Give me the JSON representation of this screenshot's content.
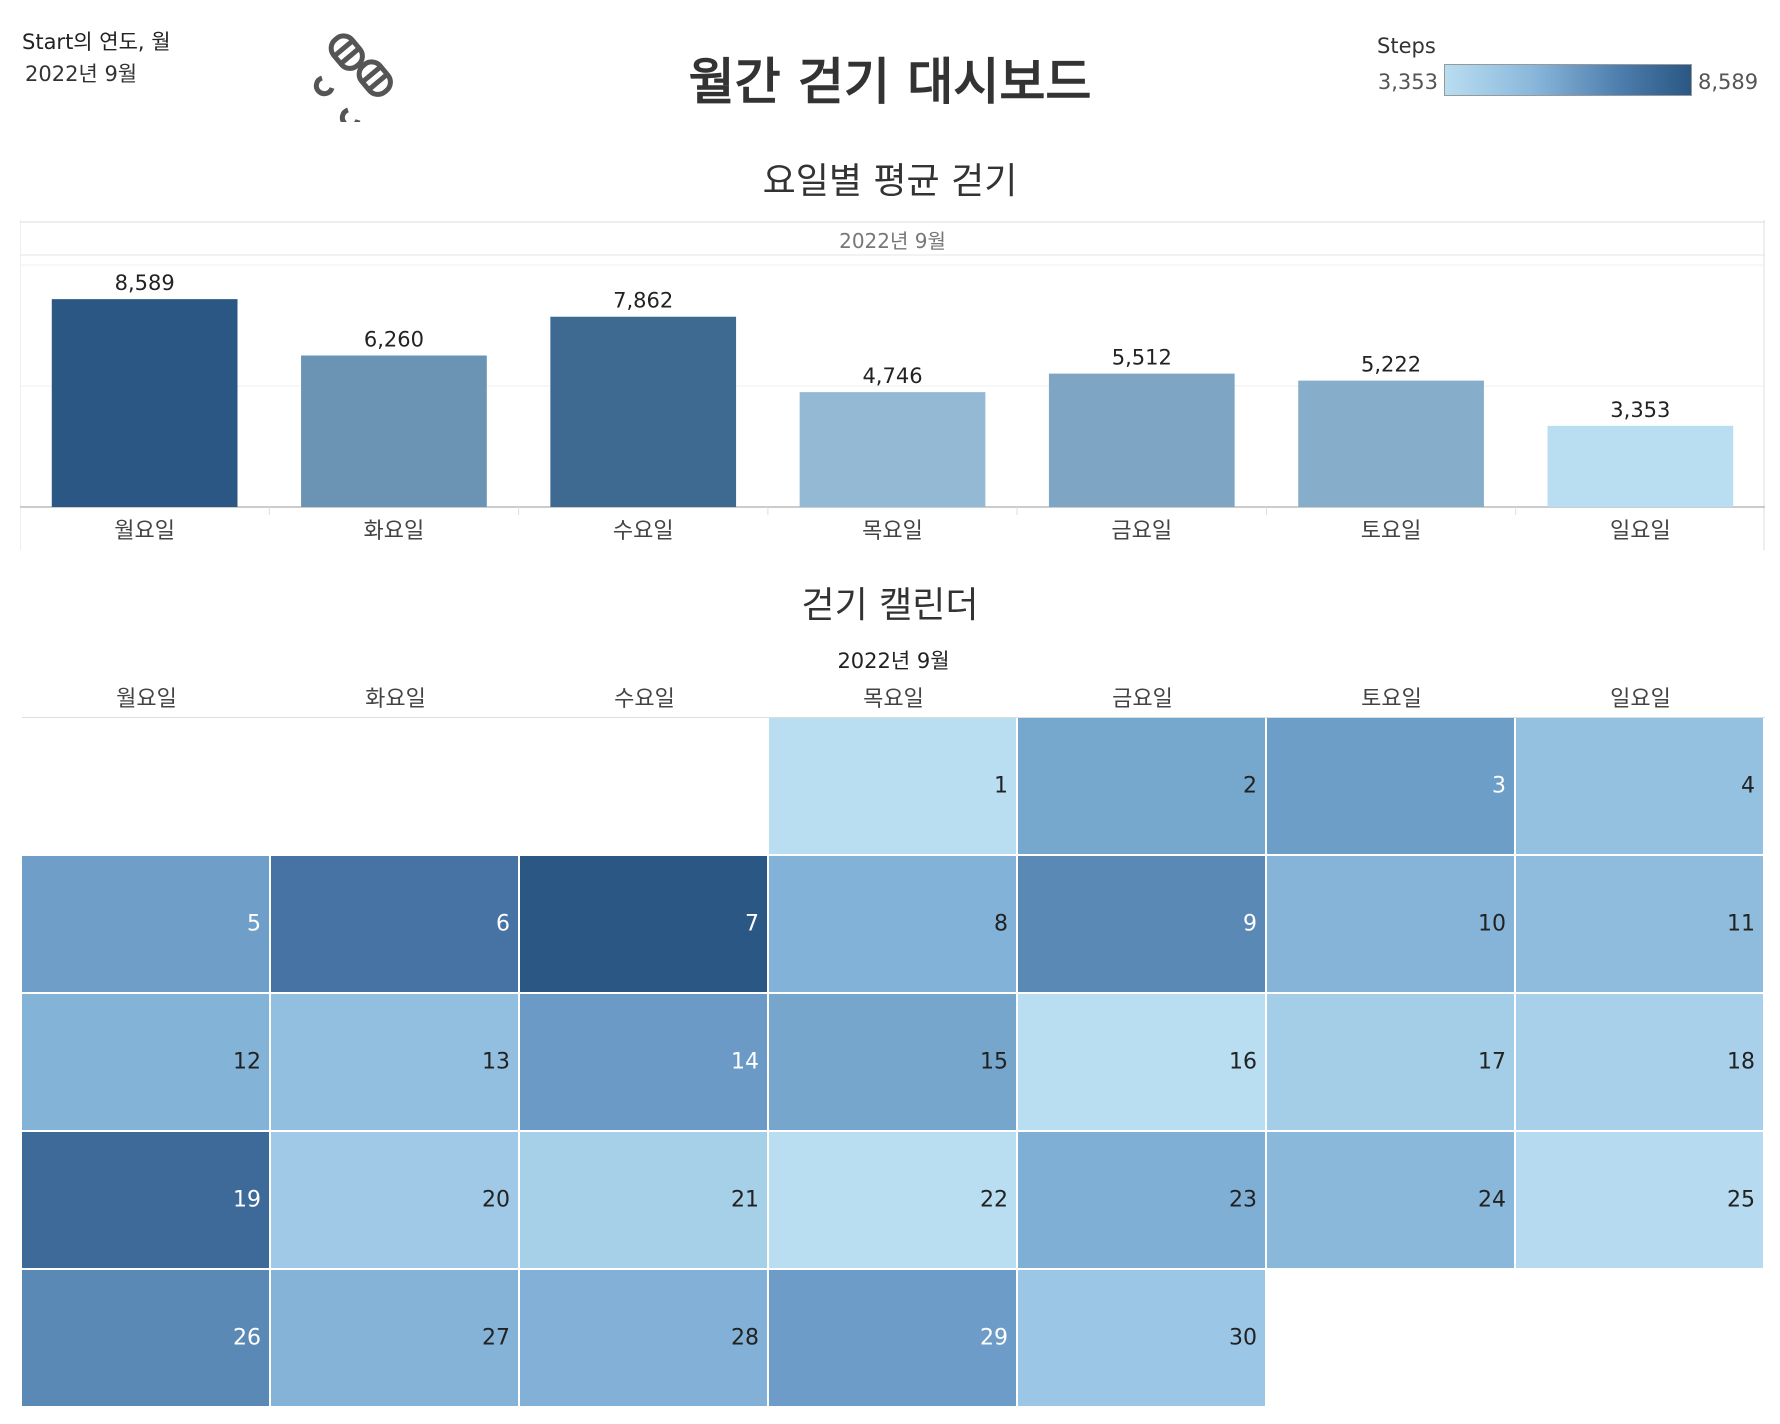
{
  "filter": {
    "label": "Start의 연도, 월",
    "value": "2022년 9월"
  },
  "title": "월간 걷기 대시보드",
  "legend": {
    "title": "Steps",
    "min": "3,353",
    "max": "8,589",
    "min_value": 3353,
    "max_value": 8589,
    "colors": [
      "#b9ddf1",
      "#2a5783"
    ]
  },
  "bar_section": {
    "title": "요일별 평균 걷기",
    "month_label": "2022년 9월"
  },
  "calendar_section": {
    "title": "걷기 캘린더",
    "month_label": "2022년 9월",
    "weekdays": [
      "월요일",
      "화요일",
      "수요일",
      "목요일",
      "금요일",
      "토요일",
      "일요일"
    ]
  },
  "chart_data": [
    {
      "type": "bar",
      "title": "요일별 평균 걷기",
      "subtitle": "2022년 9월",
      "categories": [
        "월요일",
        "화요일",
        "수요일",
        "목요일",
        "금요일",
        "토요일",
        "일요일"
      ],
      "values": [
        8589,
        6260,
        7862,
        4746,
        5512,
        5222,
        3353
      ],
      "value_labels": [
        "8,589",
        "6,260",
        "7,862",
        "4,746",
        "5,512",
        "5,222",
        "3,353"
      ],
      "ylim": [
        0,
        10000
      ],
      "grid": true
    },
    {
      "type": "heatmap",
      "title": "걷기 캘린더",
      "subtitle": "2022년 9월",
      "columns": [
        "월요일",
        "화요일",
        "수요일",
        "목요일",
        "금요일",
        "토요일",
        "일요일"
      ],
      "first_day_column": 3,
      "days": [
        {
          "day": 1,
          "color": "#b9ddf1"
        },
        {
          "day": 2,
          "color": "#76a7cc"
        },
        {
          "day": 3,
          "color": "#6d9ec8"
        },
        {
          "day": 4,
          "color": "#95c1e1"
        },
        {
          "day": 5,
          "color": "#6f9fc9"
        },
        {
          "day": 6,
          "color": "#4673a4"
        },
        {
          "day": 7,
          "color": "#2a5783"
        },
        {
          "day": 8,
          "color": "#83b2d8"
        },
        {
          "day": 9,
          "color": "#5a89b6"
        },
        {
          "day": 10,
          "color": "#86b4d9"
        },
        {
          "day": 11,
          "color": "#8fbcdd"
        },
        {
          "day": 12,
          "color": "#84b3d8"
        },
        {
          "day": 13,
          "color": "#92bfdf"
        },
        {
          "day": 14,
          "color": "#6a9ac5"
        },
        {
          "day": 15,
          "color": "#76a6cc"
        },
        {
          "day": 16,
          "color": "#b9ddf1"
        },
        {
          "day": 17,
          "color": "#a4cde8"
        },
        {
          "day": 18,
          "color": "#a8d0ea"
        },
        {
          "day": 19,
          "color": "#3e6a9a"
        },
        {
          "day": 20,
          "color": "#9fc9e6"
        },
        {
          "day": 21,
          "color": "#a6cfe8"
        },
        {
          "day": 22,
          "color": "#badef1"
        },
        {
          "day": 23,
          "color": "#80afd5"
        },
        {
          "day": 24,
          "color": "#8ab8db"
        },
        {
          "day": 25,
          "color": "#b6dbf0"
        },
        {
          "day": 26,
          "color": "#5a89b6"
        },
        {
          "day": 27,
          "color": "#85b3d8"
        },
        {
          "day": 28,
          "color": "#82b0d6"
        },
        {
          "day": 29,
          "color": "#6c9cc7"
        },
        {
          "day": 30,
          "color": "#9cc6e5"
        }
      ]
    }
  ]
}
